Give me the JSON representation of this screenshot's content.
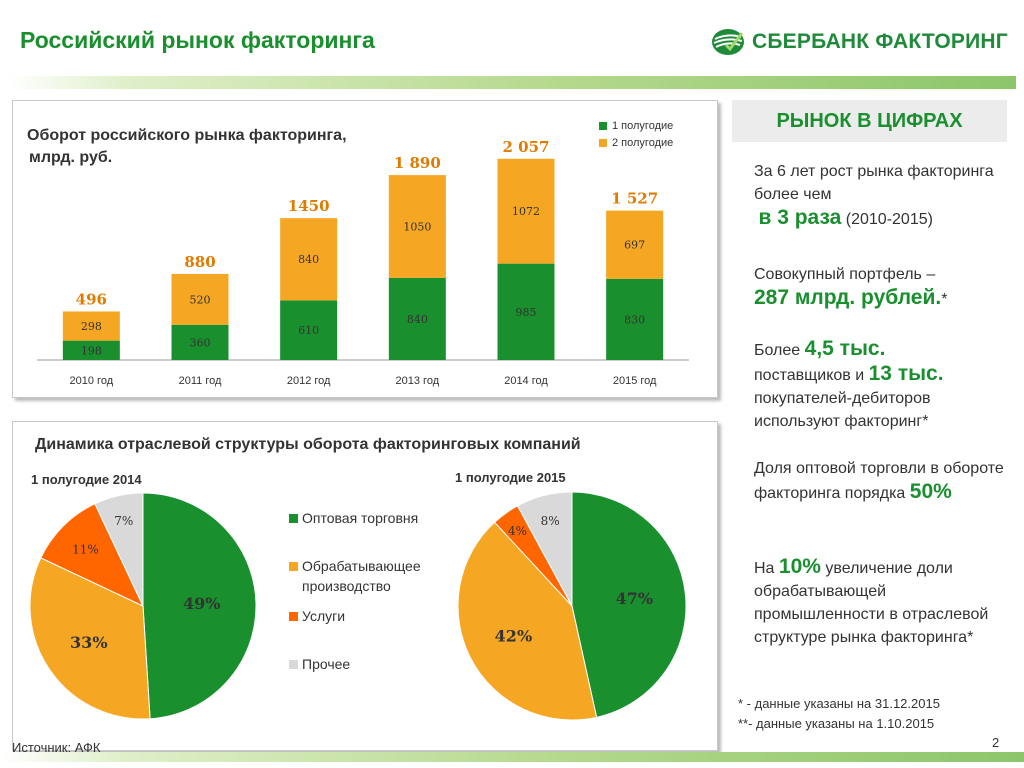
{
  "header": {
    "title": "Российский рынок факторинга",
    "logo_text": "СБЕРБАНК ФАКТОРИНГ"
  },
  "colors": {
    "green": "#1a8f2e",
    "orange": "#f0a500",
    "orange_red": "#ff6600",
    "gray": "#d9d9d9"
  },
  "chart_data": [
    {
      "type": "bar",
      "stacked": true,
      "title_line1": "Оборот российского рынка факторинга,",
      "title_line2": "млрд. руб.",
      "categories": [
        "2010 год",
        "2011 год",
        "2012 год",
        "2013 год",
        "2014 год",
        "2015 год"
      ],
      "series": [
        {
          "name": "1 полугодие",
          "color": "#1a8f2e",
          "values": [
            198,
            360,
            610,
            840,
            985,
            830
          ],
          "labels": [
            "198",
            "360",
            "610",
            "840",
            "985",
            "830"
          ]
        },
        {
          "name": "2 полугодие",
          "color": "#f5a623",
          "values": [
            298,
            520,
            840,
            1050,
            1072,
            697
          ],
          "labels": [
            "298",
            "520",
            "840",
            "1050",
            "1072",
            "697"
          ]
        }
      ],
      "totals": [
        "496",
        "880",
        "1450",
        "1 890",
        "2 057",
        "1 527"
      ],
      "ylim": [
        0,
        2300
      ],
      "legend": "top-right"
    },
    {
      "type": "pie",
      "title": "1 полугодие 2014",
      "labels": [
        "Оптовая торговня",
        "Обрабатывающее производство",
        "Услуги",
        "Прочее"
      ],
      "values": [
        49,
        33,
        11,
        7
      ],
      "value_labels": [
        "49%",
        "33%",
        "11%",
        "7%"
      ]
    },
    {
      "type": "pie",
      "title": "1 полугодие 2015",
      "labels": [
        "Оптовая торговня",
        "Обрабатывающее производство",
        "Услуги",
        "Прочее"
      ],
      "values": [
        47,
        42,
        4,
        8
      ],
      "value_labels": [
        "47%",
        "42%",
        "4%",
        "8%"
      ]
    }
  ],
  "pies": {
    "section_title": "Динамика отраслевой структуры оборота факторинговых компаний",
    "legend": [
      {
        "label": "Оптовая торговня",
        "color": "#1a8f2e"
      },
      {
        "label": "Обрабатывающее производство",
        "color": "#f5a623"
      },
      {
        "label": "Услуги",
        "color": "#ff6600"
      },
      {
        "label": "Прочее",
        "color": "#d9d9d9"
      }
    ]
  },
  "stats": {
    "header": "РЫНОК В ЦИФРАХ",
    "s1_a": "За 6 лет рост рынка факторинга более чем",
    "s1_big": "в 3 раза",
    "s1_b": "(2010-2015)",
    "s2_a": "Совокупный портфель –",
    "s2_big": "287 млрд. рублей.",
    "s2_b": "*",
    "s3_a": "Более",
    "s3_big1": "4,5 тыс.",
    "s3_b": "поставщиков и",
    "s3_big2": "13 тыс.",
    "s3_c": "покупателей-дебиторов используют факторинг*",
    "s4_a": "Доля оптовой торговли в обороте факторинга порядка",
    "s4_big": "50%",
    "s5_a": "На",
    "s5_big": "10%",
    "s5_b": "увеличение доли обрабатывающей промышленности в отраслевой структуре рынка факторинга*"
  },
  "notes": {
    "n1": "* -  данные указаны на 31.12.2015",
    "n2": "**- данные указаны на 1.10.2015"
  },
  "footer": {
    "source": "Источник: АФК",
    "page": "2"
  }
}
